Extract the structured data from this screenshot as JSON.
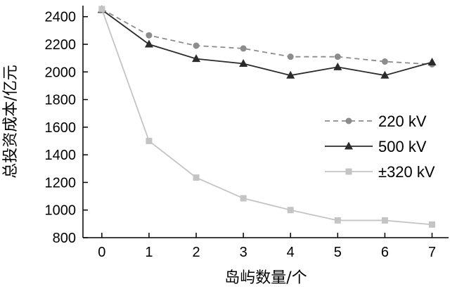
{
  "chart_data": {
    "type": "line",
    "title": "",
    "xlabel": "岛屿数量/个",
    "ylabel": "总投资成本/亿元",
    "x": [
      0,
      1,
      2,
      3,
      4,
      5,
      6,
      7
    ],
    "x_ticks": [
      "0",
      "1",
      "2",
      "3",
      "4",
      "5",
      "6",
      "7"
    ],
    "y_ticks": [
      "800",
      "1000",
      "1200",
      "1400",
      "1600",
      "1800",
      "2000",
      "2200",
      "2400"
    ],
    "xlim": [
      -0.4,
      7.35
    ],
    "ylim": [
      800,
      2480
    ],
    "grid": false,
    "legend_position": "center-right",
    "series": [
      {
        "name": "220 kV",
        "color": "#8c8c8c",
        "line_style": "dashed",
        "marker": "circle",
        "values": [
          2455,
          2265,
          2190,
          2170,
          2110,
          2110,
          2075,
          2055
        ]
      },
      {
        "name": "500 kV",
        "color": "#2b2b2b",
        "line_style": "solid",
        "marker": "triangle",
        "values": [
          2450,
          2200,
          2095,
          2060,
          1975,
          2035,
          1975,
          2070
        ]
      },
      {
        "name": "±320 kV",
        "color": "#c4c4c4",
        "line_style": "solid",
        "marker": "square",
        "values": [
          2455,
          1500,
          1235,
          1085,
          1000,
          925,
          925,
          895
        ]
      }
    ]
  }
}
